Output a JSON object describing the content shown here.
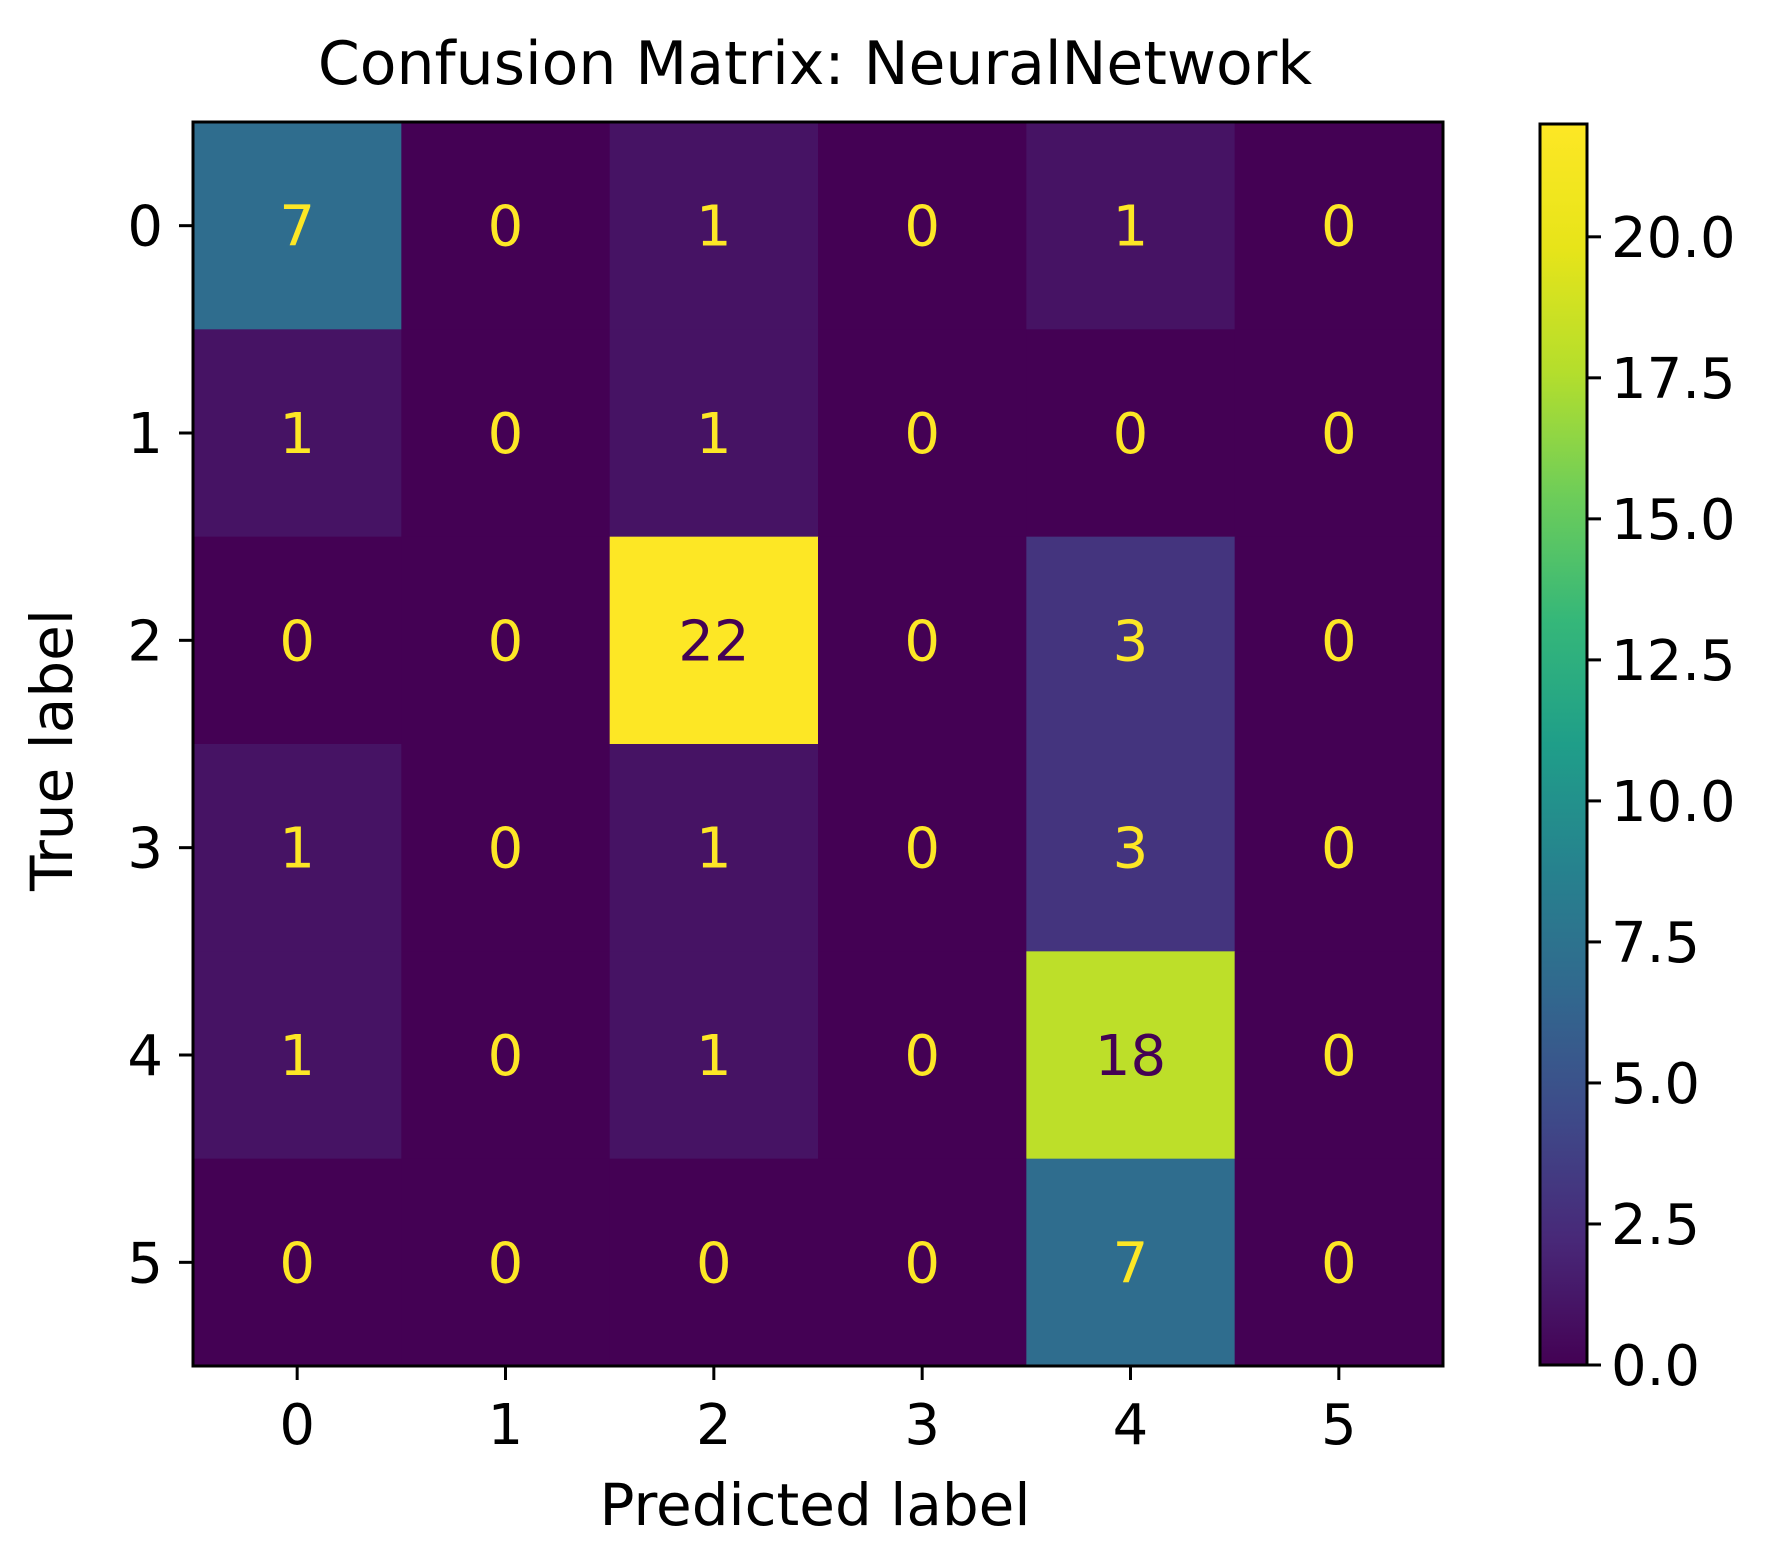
{
  "chart_data": {
    "type": "heatmap",
    "title": "Confusion Matrix: NeuralNetwork",
    "xlabel": "Predicted label",
    "ylabel": "True label",
    "x_categories": [
      "0",
      "1",
      "2",
      "3",
      "4",
      "5"
    ],
    "y_categories": [
      "0",
      "1",
      "2",
      "3",
      "4",
      "5"
    ],
    "values": [
      [
        7,
        0,
        1,
        0,
        1,
        0
      ],
      [
        1,
        0,
        1,
        0,
        0,
        0
      ],
      [
        0,
        0,
        22,
        0,
        3,
        0
      ],
      [
        1,
        0,
        1,
        0,
        3,
        0
      ],
      [
        1,
        0,
        1,
        0,
        18,
        0
      ],
      [
        0,
        0,
        0,
        0,
        7,
        0
      ]
    ],
    "colormap": "viridis",
    "value_range": [
      0,
      22
    ],
    "colorbar_ticks": [
      "0.0",
      "2.5",
      "5.0",
      "7.5",
      "10.0",
      "12.5",
      "15.0",
      "17.5",
      "20.0"
    ],
    "colorbar_tick_values": [
      0,
      2.5,
      5,
      7.5,
      10,
      12.5,
      15,
      17.5,
      20
    ],
    "annotation_colors": {
      "on_dark": "#fde725",
      "on_light": "#440154"
    },
    "grid": false
  }
}
